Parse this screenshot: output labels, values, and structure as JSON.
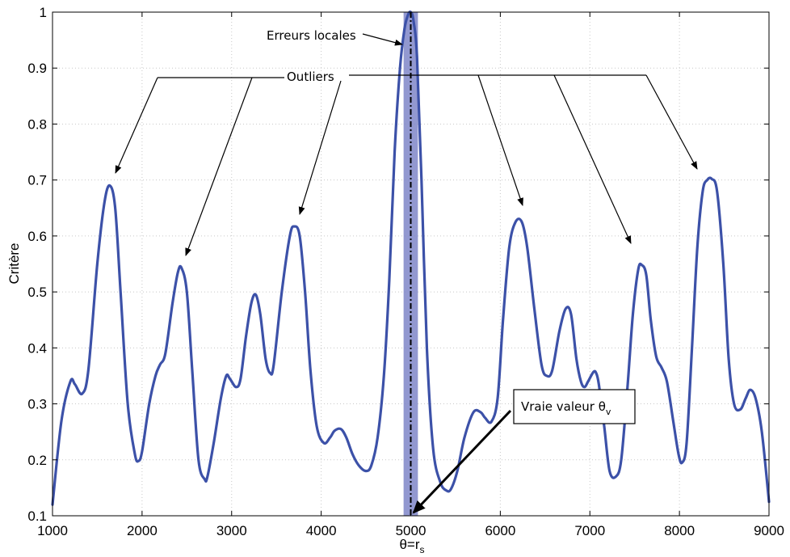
{
  "chart_data": {
    "type": "line",
    "title": "",
    "xlabel": "θ=r",
    "xlabel_subscript": "s",
    "ylabel": "Critère",
    "xlim": [
      1000,
      9000
    ],
    "ylim": [
      0.1,
      1
    ],
    "grid": true,
    "x_ticks": [
      1000,
      2000,
      3000,
      4000,
      5000,
      6000,
      7000,
      8000,
      9000
    ],
    "y_ticks": [
      0.1,
      0.2,
      0.3,
      0.4,
      0.5,
      0.6,
      0.7,
      0.8,
      0.9,
      1
    ],
    "x_tick_labels": [
      "1000",
      "2000",
      "3000",
      "4000",
      "5000",
      "6000",
      "7000",
      "8000",
      "9000"
    ],
    "y_tick_labels": [
      "0.1",
      "0.2",
      "0.3",
      "0.4",
      "0.5",
      "0.6",
      "0.7",
      "0.8",
      "0.9",
      "1"
    ],
    "line_color": "#3c51a8",
    "band_color": "#7f86c8",
    "band_x": [
      4920,
      5080
    ],
    "true_value_x": 5000,
    "series": [
      {
        "x": [
          1000,
          1100,
          1200,
          1250,
          1330,
          1400,
          1500,
          1580,
          1640,
          1700,
          1760,
          1840,
          1920,
          1960,
          2000,
          2080,
          2150,
          2200,
          2260,
          2340,
          2400,
          2440,
          2500,
          2560,
          2630,
          2700,
          2730,
          2800,
          2880,
          2940,
          2980,
          3050,
          3100,
          3160,
          3220,
          3270,
          3320,
          3380,
          3430,
          3470,
          3560,
          3650,
          3700,
          3760,
          3820,
          3880,
          3950,
          4030,
          4100,
          4150,
          4220,
          4280,
          4350,
          4420,
          4500,
          4560,
          4630,
          4700,
          4760,
          4820,
          4880,
          4930,
          4970,
          5000,
          5030,
          5070,
          5120,
          5180,
          5250,
          5330,
          5400,
          5450,
          5520,
          5600,
          5700,
          5780,
          5830,
          5900,
          5970,
          6030,
          6100,
          6170,
          6240,
          6300,
          6380,
          6460,
          6520,
          6580,
          6660,
          6730,
          6790,
          6850,
          6900,
          6940,
          6980,
          7040,
          7070,
          7100,
          7160,
          7220,
          7290,
          7350,
          7420,
          7480,
          7540,
          7580,
          7630,
          7680,
          7740,
          7800,
          7860,
          7930,
          7990,
          8030,
          8080,
          8140,
          8200,
          8260,
          8310,
          8360,
          8420,
          8490,
          8550,
          8610,
          8680,
          8740,
          8790,
          8850,
          8920,
          9000
        ],
        "y": [
          0.12,
          0.27,
          0.34,
          0.335,
          0.318,
          0.36,
          0.55,
          0.66,
          0.69,
          0.65,
          0.5,
          0.3,
          0.21,
          0.198,
          0.215,
          0.3,
          0.35,
          0.37,
          0.39,
          0.48,
          0.535,
          0.543,
          0.5,
          0.36,
          0.2,
          0.165,
          0.17,
          0.23,
          0.31,
          0.35,
          0.345,
          0.33,
          0.345,
          0.42,
          0.48,
          0.495,
          0.46,
          0.38,
          0.355,
          0.37,
          0.5,
          0.6,
          0.617,
          0.6,
          0.5,
          0.36,
          0.26,
          0.23,
          0.24,
          0.252,
          0.255,
          0.24,
          0.21,
          0.19,
          0.18,
          0.19,
          0.24,
          0.35,
          0.52,
          0.75,
          0.9,
          0.97,
          0.995,
          1.0,
          0.985,
          0.92,
          0.7,
          0.4,
          0.22,
          0.16,
          0.145,
          0.148,
          0.18,
          0.24,
          0.285,
          0.285,
          0.275,
          0.268,
          0.31,
          0.45,
          0.58,
          0.625,
          0.625,
          0.58,
          0.47,
          0.37,
          0.35,
          0.36,
          0.43,
          0.47,
          0.46,
          0.38,
          0.34,
          0.33,
          0.34,
          0.357,
          0.355,
          0.335,
          0.26,
          0.18,
          0.17,
          0.2,
          0.33,
          0.46,
          0.54,
          0.548,
          0.53,
          0.45,
          0.385,
          0.365,
          0.34,
          0.27,
          0.21,
          0.195,
          0.23,
          0.4,
          0.58,
          0.68,
          0.7,
          0.702,
          0.68,
          0.55,
          0.38,
          0.3,
          0.29,
          0.31,
          0.325,
          0.31,
          0.25,
          0.125
        ]
      }
    ],
    "annotations": {
      "erreurs_locales": "Erreurs locales",
      "outliers": "Outliers",
      "vraie_valeur": "Vraie valeur θ",
      "vraie_valeur_subscript": "v"
    }
  }
}
